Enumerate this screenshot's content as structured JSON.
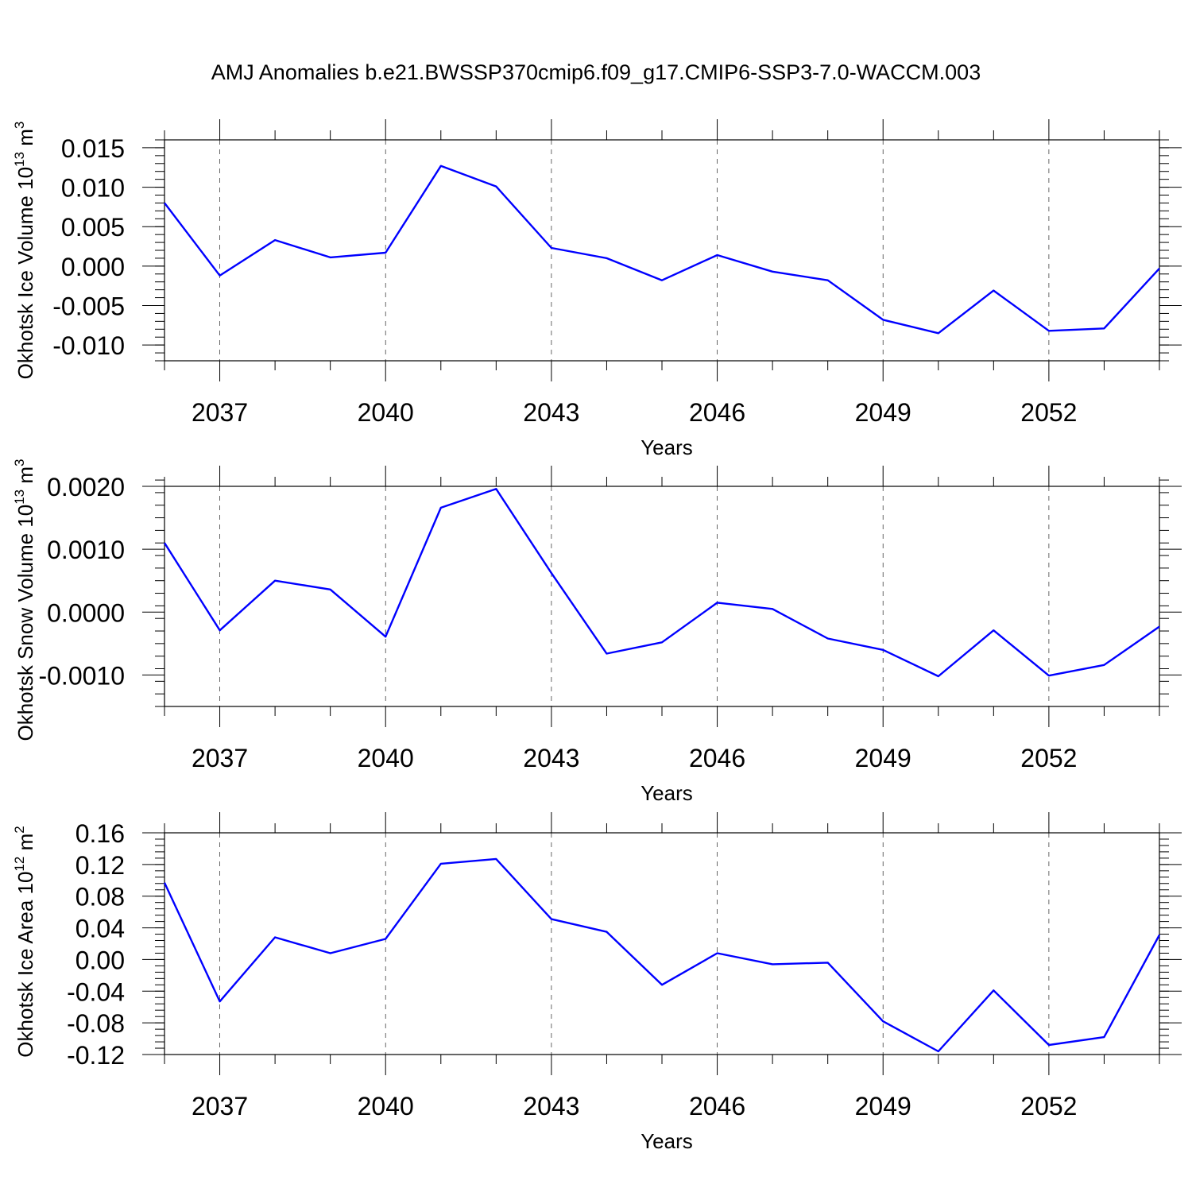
{
  "chart_data": {
    "title": "AMJ Anomalies b.e21.BWSSP370cmip6.f09_g17.CMIP6-SSP3-7.0-WACCM.003",
    "panels": [
      {
        "type": "line",
        "ylabel_main": "Okhotsk Ice Volume 10",
        "ylabel_exp": "13",
        "ylabel_unit": " m",
        "ylabel_unit_exp": "3",
        "xlabel": "Years",
        "xlim": [
          2036,
          2054
        ],
        "ylim": [
          -0.012,
          0.016
        ],
        "yticks": [
          -0.01,
          -0.005,
          0.0,
          0.005,
          0.01,
          0.015
        ],
        "ytick_labels": [
          "-0.010",
          "-0.005",
          "0.000",
          "0.005",
          "0.010",
          "0.015"
        ],
        "xticks": [
          2037,
          2040,
          2043,
          2046,
          2049,
          2052
        ],
        "xtick_labels": [
          "2037",
          "2040",
          "2043",
          "2046",
          "2049",
          "2052"
        ],
        "x": [
          2036,
          2037,
          2038,
          2039,
          2040,
          2041,
          2042,
          2043,
          2044,
          2045,
          2046,
          2047,
          2048,
          2049,
          2050,
          2051,
          2052,
          2053,
          2054
        ],
        "values": [
          0.008,
          -0.0012,
          0.0033,
          0.0011,
          0.0017,
          0.0127,
          0.0101,
          0.0023,
          0.001,
          -0.0018,
          0.0014,
          -0.0007,
          -0.0018,
          -0.0068,
          -0.0085,
          -0.0031,
          -0.0082,
          -0.0079,
          -0.0003
        ]
      },
      {
        "type": "line",
        "ylabel_main": "Okhotsk Snow Volume 10",
        "ylabel_exp": "13",
        "ylabel_unit": " m",
        "ylabel_unit_exp": "3",
        "xlabel": "Years",
        "xlim": [
          2036,
          2054
        ],
        "ylim": [
          -0.0015,
          0.002
        ],
        "yticks": [
          -0.001,
          0.0,
          0.001,
          0.002
        ],
        "ytick_labels": [
          "-0.0010",
          "0.0000",
          "0.0010",
          "0.0020"
        ],
        "xticks": [
          2037,
          2040,
          2043,
          2046,
          2049,
          2052
        ],
        "xtick_labels": [
          "2037",
          "2040",
          "2043",
          "2046",
          "2049",
          "2052"
        ],
        "x": [
          2036,
          2037,
          2038,
          2039,
          2040,
          2041,
          2042,
          2043,
          2044,
          2045,
          2046,
          2047,
          2048,
          2049,
          2050,
          2051,
          2052,
          2053,
          2054
        ],
        "values": [
          0.0011,
          -0.00029,
          0.0005,
          0.00036,
          -0.00039,
          0.00166,
          0.00196,
          0.00062,
          -0.00066,
          -0.00048,
          0.00015,
          5e-05,
          -0.00042,
          -0.0006,
          -0.00102,
          -0.00029,
          -0.00101,
          -0.00084,
          -0.00023
        ]
      },
      {
        "type": "line",
        "ylabel_main": "Okhotsk Ice Area 10",
        "ylabel_exp": "12",
        "ylabel_unit": " m",
        "ylabel_unit_exp": "2",
        "xlabel": "Years",
        "xlim": [
          2036,
          2054
        ],
        "ylim": [
          -0.12,
          0.16
        ],
        "yticks": [
          -0.12,
          -0.08,
          -0.04,
          0.0,
          0.04,
          0.08,
          0.12,
          0.16
        ],
        "ytick_labels": [
          "-0.12",
          "-0.08",
          "-0.04",
          "0.00",
          "0.04",
          "0.08",
          "0.12",
          "0.16"
        ],
        "xticks": [
          2037,
          2040,
          2043,
          2046,
          2049,
          2052
        ],
        "xtick_labels": [
          "2037",
          "2040",
          "2043",
          "2046",
          "2049",
          "2052"
        ],
        "x": [
          2036,
          2037,
          2038,
          2039,
          2040,
          2041,
          2042,
          2043,
          2044,
          2045,
          2046,
          2047,
          2048,
          2049,
          2050,
          2051,
          2052,
          2053,
          2054
        ],
        "values": [
          0.097,
          -0.053,
          0.028,
          0.008,
          0.026,
          0.121,
          0.127,
          0.051,
          0.035,
          -0.032,
          0.008,
          -0.006,
          -0.004,
          -0.078,
          -0.116,
          -0.039,
          -0.108,
          -0.098,
          0.031
        ]
      }
    ],
    "colors": {
      "series": "#0000ff",
      "axes": "#000000"
    }
  }
}
